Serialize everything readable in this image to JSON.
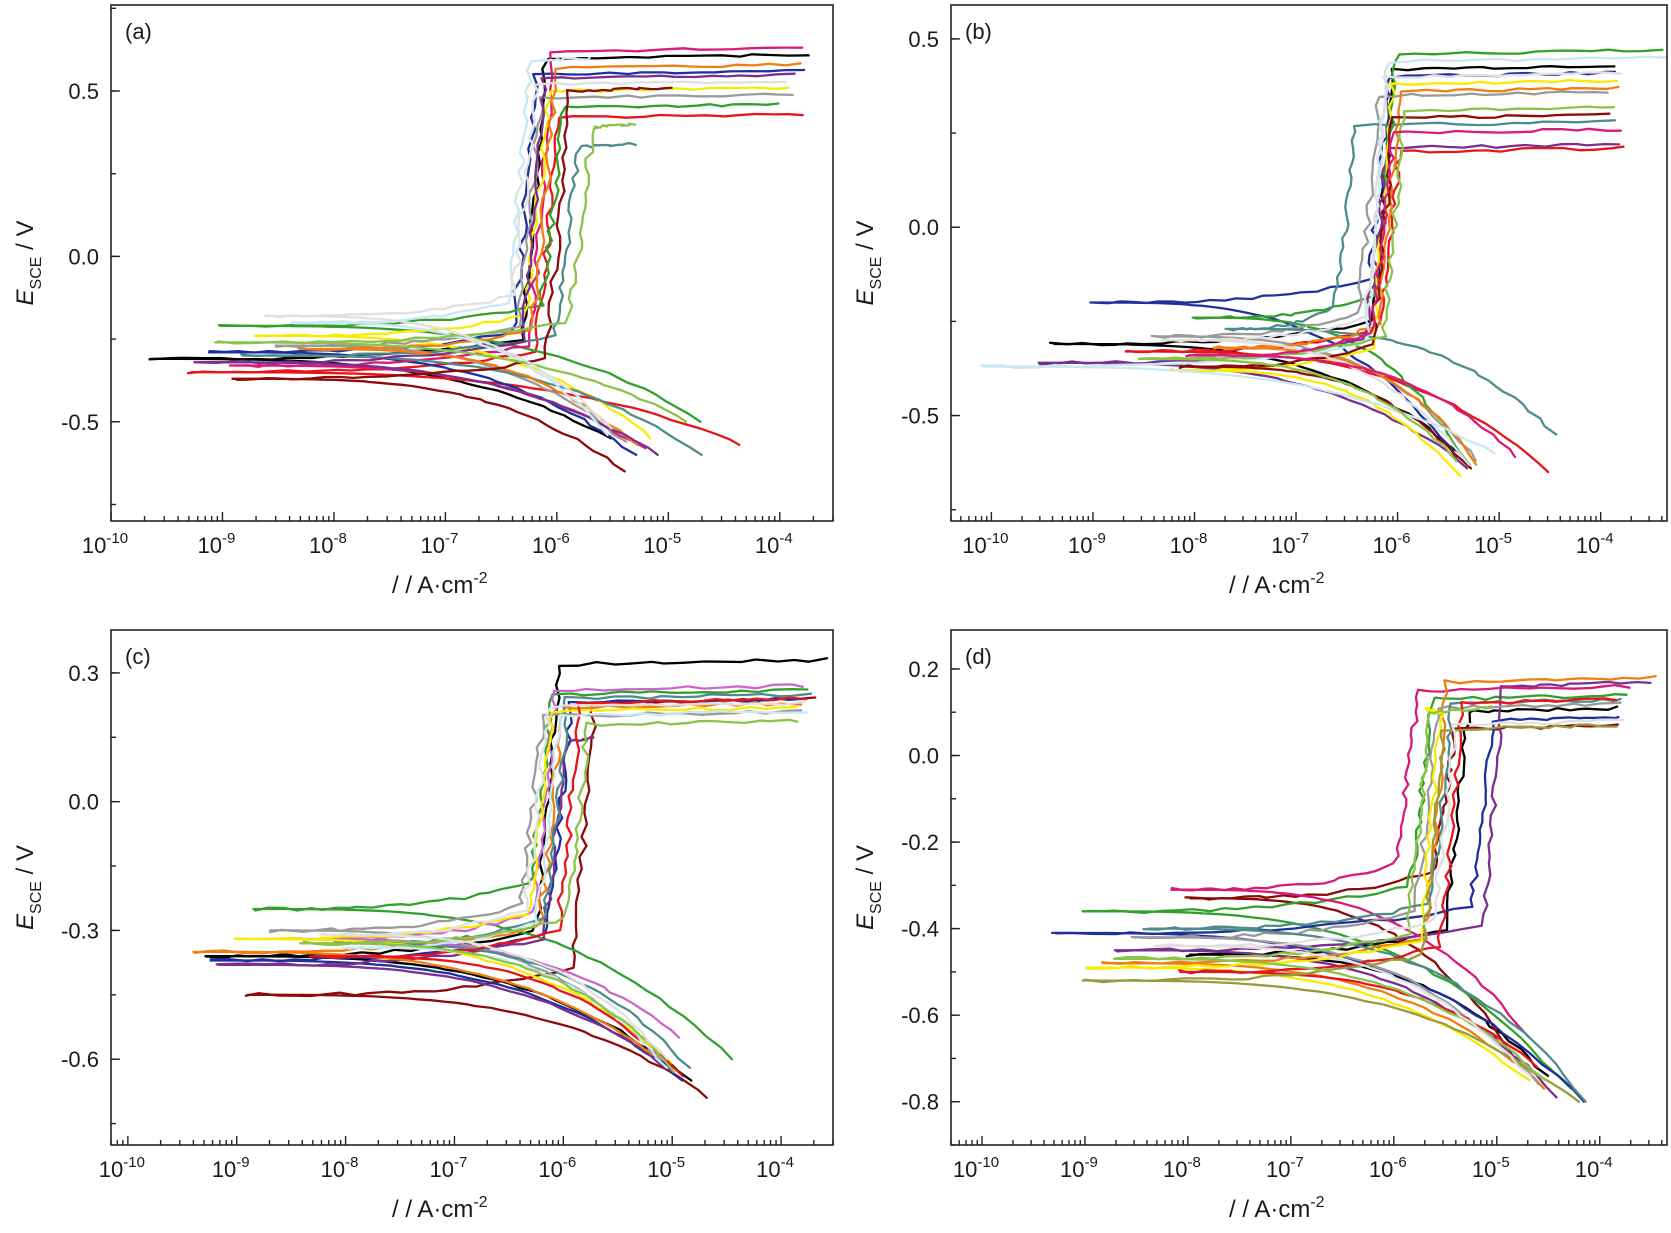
{
  "figure": {
    "panels": [
      {
        "tag": "(a)",
        "xlabel_prefix": "/ / A·cm",
        "ylabel_main": "E",
        "ylabel_sub": "SCE",
        "ylabel_unit": " / V"
      },
      {
        "tag": "(b)",
        "xlabel_prefix": "/ / A·cm",
        "ylabel_main": "E",
        "ylabel_sub": "SCE",
        "ylabel_unit": " / V"
      },
      {
        "tag": "(c)",
        "xlabel_prefix": "/ / A·cm",
        "ylabel_main": "E",
        "ylabel_sub": "SCE",
        "ylabel_unit": " / V"
      },
      {
        "tag": "(d)",
        "xlabel_prefix": "/ / A·cm",
        "ylabel_main": "E",
        "ylabel_sub": "SCE",
        "ylabel_unit": " / V"
      }
    ]
  },
  "chart_data": [
    {
      "type": "line",
      "panel": "(a)",
      "xscale": "log",
      "xlabel": "/ / A·cm⁻²",
      "ylabel": "E_SCE / V",
      "xlim": [
        1e-10,
        0.0003
      ],
      "ylim": [
        -0.8,
        0.76
      ],
      "xticks": [
        "10-10",
        "10-9",
        "10-8",
        "10-7",
        "10-6",
        "10-5",
        "10-4"
      ],
      "yticks": [
        "0.5",
        "0.0",
        "-0.5"
      ],
      "ytick_values": [
        0.5,
        0.0,
        -0.5
      ],
      "colors": [
        "#000000",
        "#e8141b",
        "#1f2f9e",
        "#33a02c",
        "#d81b78",
        "#f5ec00",
        "#9a9a9a",
        "#4e8c8c",
        "#f07f12",
        "#7b2f8e",
        "#c9e8f2",
        "#8b0a0a",
        "#8bc34a",
        "#e0e0e0"
      ],
      "series": [
        {
          "ecorr": -0.31,
          "icorr": 2.2e-10,
          "passive_i": 6e-07,
          "e_break": 0.6,
          "i_end": 0.00018,
          "e_cath_end": -0.55,
          "i_cath_end": 3e-06
        },
        {
          "ecorr": -0.35,
          "icorr": 5e-10,
          "passive_i": 8e-07,
          "e_break": 0.42,
          "i_end": 0.00017,
          "e_cath_end": -0.57,
          "i_cath_end": 4.5e-05
        },
        {
          "ecorr": -0.29,
          "icorr": 8e-10,
          "passive_i": 5e-07,
          "e_break": 0.55,
          "i_end": 0.00016,
          "e_cath_end": -0.6,
          "i_cath_end": 5e-06
        },
        {
          "ecorr": -0.21,
          "icorr": 1e-09,
          "passive_i": 9e-07,
          "e_break": 0.45,
          "i_end": 0.0001,
          "e_cath_end": -0.5,
          "i_cath_end": 2e-05
        },
        {
          "ecorr": -0.33,
          "icorr": 1.2e-09,
          "passive_i": 7e-07,
          "e_break": 0.62,
          "i_end": 0.00015,
          "e_cath_end": -0.58,
          "i_cath_end": 6e-06
        },
        {
          "ecorr": -0.24,
          "icorr": 2e-09,
          "passive_i": 6.5e-07,
          "e_break": 0.5,
          "i_end": 0.00012,
          "e_cath_end": -0.55,
          "i_cath_end": 7e-06
        },
        {
          "ecorr": -0.27,
          "icorr": 3e-09,
          "passive_i": 5.5e-07,
          "e_break": 0.48,
          "i_end": 0.00014,
          "e_cath_end": -0.56,
          "i_cath_end": 4e-06
        },
        {
          "ecorr": -0.3,
          "icorr": 1.5e-09,
          "passive_i": 1.2e-06,
          "e_break": 0.33,
          "i_end": 5e-06,
          "e_cath_end": -0.6,
          "i_cath_end": 2e-05
        },
        {
          "ecorr": -0.28,
          "icorr": 5e-09,
          "passive_i": 7.5e-07,
          "e_break": 0.57,
          "i_end": 0.00016,
          "e_cath_end": -0.57,
          "i_cath_end": 5e-06
        },
        {
          "ecorr": -0.32,
          "icorr": 6e-10,
          "passive_i": 6e-07,
          "e_break": 0.54,
          "i_end": 0.00013,
          "e_cath_end": -0.6,
          "i_cath_end": 8e-06
        },
        {
          "ecorr": -0.2,
          "icorr": 4e-09,
          "passive_i": 4.5e-07,
          "e_break": 0.59,
          "i_end": 2e-06,
          "e_cath_end": -0.54,
          "i_cath_end": 3e-06
        },
        {
          "ecorr": -0.37,
          "icorr": 1.3e-09,
          "passive_i": 1e-06,
          "e_break": 0.5,
          "i_end": 1e-05,
          "e_cath_end": -0.65,
          "i_cath_end": 4e-06
        },
        {
          "ecorr": -0.26,
          "icorr": 9e-10,
          "passive_i": 1.6e-06,
          "e_break": 0.39,
          "i_end": 5e-06,
          "e_cath_end": -0.5,
          "i_cath_end": 1.5e-05
        },
        {
          "ecorr": -0.18,
          "icorr": 2.5e-09,
          "passive_i": 5e-07,
          "e_break": 0.52,
          "i_end": 0.00012,
          "e_cath_end": -0.52,
          "i_cath_end": 3e-06
        }
      ]
    },
    {
      "type": "line",
      "panel": "(b)",
      "xscale": "log",
      "xlabel": "/ / A·cm⁻²",
      "ylabel": "E_SCE / V",
      "xlim": [
        4e-11,
        0.00045
      ],
      "ylim": [
        -0.78,
        0.59
      ],
      "xticks": [
        "10-10",
        "10-9",
        "10-8",
        "10-7",
        "10-6",
        "10-5",
        "10-4"
      ],
      "yticks": [
        "0.5",
        "0.0",
        "-0.5"
      ],
      "ytick_values": [
        0.5,
        0.0,
        -0.5
      ],
      "colors": [
        "#000000",
        "#e8141b",
        "#1f2f9e",
        "#33a02c",
        "#7b2f8e",
        "#f5ec00",
        "#9a9a9a",
        "#4e8c8c",
        "#f07f12",
        "#8b0a0a",
        "#c9e8f2",
        "#8bc34a",
        "#e0e0e0",
        "#d81b78"
      ],
      "series": [
        {
          "ecorr": -0.31,
          "icorr": 4e-10,
          "passive_i": 7e-07,
          "e_break": 0.42,
          "i_end": 0.00013,
          "e_cath_end": -0.62,
          "i_cath_end": 5e-06
        },
        {
          "ecorr": -0.33,
          "icorr": 2e-09,
          "passive_i": 8e-07,
          "e_break": 0.2,
          "i_end": 0.00017,
          "e_cath_end": -0.65,
          "i_cath_end": 3e-05
        },
        {
          "ecorr": -0.2,
          "icorr": 1e-09,
          "passive_i": 6.5e-07,
          "e_break": 0.4,
          "i_end": 0.00015,
          "e_cath_end": -0.62,
          "i_cath_end": 4e-06
        },
        {
          "ecorr": -0.24,
          "icorr": 1e-08,
          "passive_i": 7.5e-07,
          "e_break": 0.46,
          "i_end": 0.0004,
          "e_cath_end": -0.63,
          "i_cath_end": 5e-06
        },
        {
          "ecorr": -0.36,
          "icorr": 3e-10,
          "passive_i": 6e-07,
          "e_break": 0.21,
          "i_end": 0.00016,
          "e_cath_end": -0.64,
          "i_cath_end": 5e-06
        },
        {
          "ecorr": -0.38,
          "icorr": 6e-09,
          "passive_i": 7e-07,
          "e_break": 0.38,
          "i_end": 0.00014,
          "e_cath_end": -0.66,
          "i_cath_end": 4e-06
        },
        {
          "ecorr": -0.29,
          "icorr": 4e-09,
          "passive_i": 5e-07,
          "e_break": 0.35,
          "i_end": 0.00012,
          "e_cath_end": -0.62,
          "i_cath_end": 6e-06
        },
        {
          "ecorr": -0.27,
          "icorr": 2e-08,
          "passive_i": 3e-07,
          "e_break": 0.27,
          "i_end": 0.00013,
          "e_cath_end": -0.55,
          "i_cath_end": 3.5e-05
        },
        {
          "ecorr": -0.32,
          "icorr": 1.5e-08,
          "passive_i": 8e-07,
          "e_break": 0.36,
          "i_end": 0.00015,
          "e_cath_end": -0.63,
          "i_cath_end": 6e-06
        },
        {
          "ecorr": -0.37,
          "icorr": 7e-09,
          "passive_i": 7e-07,
          "e_break": 0.29,
          "i_end": 0.00013,
          "e_cath_end": -0.64,
          "i_cath_end": 5e-06
        },
        {
          "ecorr": -0.37,
          "icorr": 8e-11,
          "passive_i": 6e-07,
          "e_break": 0.44,
          "i_end": 0.00045,
          "e_cath_end": -0.6,
          "i_cath_end": 9e-06
        },
        {
          "ecorr": -0.35,
          "icorr": 3e-09,
          "passive_i": 9e-07,
          "e_break": 0.31,
          "i_end": 0.00014,
          "e_cath_end": -0.62,
          "i_cath_end": 4e-06
        },
        {
          "ecorr": -0.3,
          "icorr": 5e-09,
          "passive_i": 6e-07,
          "e_break": 0.4,
          "i_end": 0.00015,
          "e_cath_end": -0.63,
          "i_cath_end": 5e-06
        },
        {
          "ecorr": -0.34,
          "icorr": 9e-09,
          "passive_i": 7e-07,
          "e_break": 0.25,
          "i_end": 0.00016,
          "e_cath_end": -0.61,
          "i_cath_end": 1.5e-05
        }
      ]
    },
    {
      "type": "line",
      "panel": "(c)",
      "xscale": "log",
      "xlabel": "/ / A·cm⁻²",
      "ylabel": "E_SCE / V",
      "xlim": [
        7e-11,
        0.0003
      ],
      "ylim": [
        -0.8,
        0.4
      ],
      "xticks": [
        "10-10",
        "10-9",
        "10-8",
        "10-7",
        "10-6",
        "10-5",
        "10-4"
      ],
      "yticks": [
        "0.3",
        "0.0",
        "-0.3",
        "-0.6"
      ],
      "ytick_values": [
        0.3,
        0.0,
        -0.3,
        -0.6
      ],
      "colors": [
        "#000000",
        "#8b0a0a",
        "#33a02c",
        "#1f2f9e",
        "#7b2f8e",
        "#cc66cc",
        "#f07f12",
        "#9a9a9a",
        "#4e8c8c",
        "#f5ec00",
        "#e8141b",
        "#c9e8f2",
        "#8bc34a",
        "#e0e0e0"
      ],
      "series": [
        {
          "ecorr": -0.36,
          "icorr": 5e-10,
          "passive_i": 7e-07,
          "e_break": 0.32,
          "i_end": 0.00028,
          "e_cath_end": -0.65,
          "i_cath_end": 1.5e-05
        },
        {
          "ecorr": -0.45,
          "icorr": 1.2e-09,
          "passive_i": 1.5e-06,
          "e_break": 0.23,
          "i_end": 0.0002,
          "e_cath_end": -0.69,
          "i_cath_end": 2.2e-05
        },
        {
          "ecorr": -0.25,
          "icorr": 1.5e-09,
          "passive_i": 6e-07,
          "e_break": 0.25,
          "i_end": 0.00018,
          "e_cath_end": -0.6,
          "i_cath_end": 3.5e-05
        },
        {
          "ecorr": -0.37,
          "icorr": 6e-10,
          "passive_i": 9e-07,
          "e_break": 0.23,
          "i_end": 0.00016,
          "e_cath_end": -0.65,
          "i_cath_end": 1.3e-05
        },
        {
          "ecorr": -0.38,
          "icorr": 7e-10,
          "passive_i": 8e-07,
          "e_break": 0.14,
          "i_end": 1.9e-06,
          "e_cath_end": -0.63,
          "i_cath_end": 1e-05
        },
        {
          "ecorr": -0.32,
          "icorr": 3e-09,
          "passive_i": 6.5e-07,
          "e_break": 0.26,
          "i_end": 0.00017,
          "e_cath_end": -0.55,
          "i_cath_end": 1.2e-05
        },
        {
          "ecorr": -0.35,
          "icorr": 4e-10,
          "passive_i": 7.5e-07,
          "e_break": 0.22,
          "i_end": 0.00015,
          "e_cath_end": -0.62,
          "i_cath_end": 1e-05
        },
        {
          "ecorr": -0.3,
          "icorr": 2e-09,
          "passive_i": 5e-07,
          "e_break": 0.2,
          "i_end": 0.00016,
          "e_cath_end": -0.6,
          "i_cath_end": 8e-06
        },
        {
          "ecorr": -0.33,
          "icorr": 8e-09,
          "passive_i": 8.5e-07,
          "e_break": 0.24,
          "i_end": 0.00018,
          "e_cath_end": -0.62,
          "i_cath_end": 1.4e-05
        },
        {
          "ecorr": -0.32,
          "icorr": 1e-09,
          "passive_i": 6e-07,
          "e_break": 0.21,
          "i_end": 0.00014,
          "e_cath_end": -0.61,
          "i_cath_end": 1e-05
        },
        {
          "ecorr": -0.36,
          "icorr": 5e-09,
          "passive_i": 1.1e-06,
          "e_break": 0.23,
          "i_end": 0.00016,
          "e_cath_end": -0.64,
          "i_cath_end": 1.2e-05
        },
        {
          "ecorr": -0.34,
          "icorr": 1e-08,
          "passive_i": 7e-07,
          "e_break": 0.2,
          "i_end": 0.00017,
          "e_cath_end": -0.62,
          "i_cath_end": 9e-06
        },
        {
          "ecorr": -0.33,
          "icorr": 4e-09,
          "passive_i": 1.3e-06,
          "e_break": 0.18,
          "i_end": 0.00015,
          "e_cath_end": -0.63,
          "i_cath_end": 1.1e-05
        },
        {
          "ecorr": -0.31,
          "icorr": 6e-09,
          "passive_i": 5.5e-07,
          "e_break": 0.22,
          "i_end": 0.00016,
          "e_cath_end": -0.6,
          "i_cath_end": 9e-06
        }
      ]
    },
    {
      "type": "line",
      "panel": "(d)",
      "xscale": "log",
      "xlabel": "/ / A·cm⁻²",
      "ylabel": "E_SCE / V",
      "xlim": [
        5e-11,
        0.00045
      ],
      "ylim": [
        -0.9,
        0.29
      ],
      "xticks": [
        "10-10",
        "10-9",
        "10-8",
        "10-7",
        "10-6",
        "10-5",
        "10-4"
      ],
      "yticks": [
        "0.2",
        "0.0",
        "-0.2",
        "-0.4",
        "-0.6",
        "-0.8"
      ],
      "ytick_values": [
        0.2,
        0.0,
        -0.2,
        -0.4,
        -0.6,
        -0.8
      ],
      "colors": [
        "#000000",
        "#8b0a0a",
        "#33a02c",
        "#1f2f9e",
        "#7b2f8e",
        "#d81b78",
        "#f07f12",
        "#9a9a9a",
        "#4e8c8c",
        "#f5ec00",
        "#e8141b",
        "#9a9a3a",
        "#8bc34a",
        "#e0e0e0"
      ],
      "series": [
        {
          "ecorr": -0.46,
          "icorr": 1e-08,
          "passive_i": 4e-06,
          "e_break": 0.1,
          "i_end": 0.00015,
          "e_cath_end": -0.74,
          "i_cath_end": 3e-05
        },
        {
          "ecorr": -0.33,
          "icorr": 1e-08,
          "passive_i": 3e-06,
          "e_break": 0.06,
          "i_end": 0.00014,
          "e_cath_end": -0.7,
          "i_cath_end": 1.5e-05
        },
        {
          "ecorr": -0.36,
          "icorr": 1e-09,
          "passive_i": 1.8e-06,
          "e_break": 0.13,
          "i_end": 0.00018,
          "e_cath_end": -0.77,
          "i_cath_end": 5e-05
        },
        {
          "ecorr": -0.41,
          "icorr": 5e-10,
          "passive_i": 7e-06,
          "e_break": 0.08,
          "i_end": 0.00016,
          "e_cath_end": -0.8,
          "i_cath_end": 7e-05
        },
        {
          "ecorr": -0.45,
          "icorr": 2e-09,
          "passive_i": 9e-06,
          "e_break": 0.16,
          "i_end": 0.0003,
          "e_cath_end": -0.79,
          "i_cath_end": 4e-05
        },
        {
          "ecorr": -0.31,
          "icorr": 7e-09,
          "passive_i": 1.3e-06,
          "e_break": 0.15,
          "i_end": 0.0002,
          "e_cath_end": -0.65,
          "i_cath_end": 2e-05
        },
        {
          "ecorr": -0.48,
          "icorr": 1.5e-09,
          "passive_i": 2.5e-06,
          "e_break": 0.17,
          "i_end": 0.00033,
          "e_cath_end": -0.77,
          "i_cath_end": 3e-05
        },
        {
          "ecorr": -0.42,
          "icorr": 3e-09,
          "passive_i": 2e-06,
          "e_break": 0.11,
          "i_end": 0.00016,
          "e_cath_end": -0.76,
          "i_cath_end": 2.5e-05
        },
        {
          "ecorr": -0.4,
          "icorr": 4e-09,
          "passive_i": 2.8e-06,
          "e_break": 0.12,
          "i_end": 0.00017,
          "e_cath_end": -0.8,
          "i_cath_end": 7.5e-05
        },
        {
          "ecorr": -0.49,
          "icorr": 1e-09,
          "passive_i": 2.2e-06,
          "e_break": 0.1,
          "i_end": 2e-06,
          "e_cath_end": -0.75,
          "i_cath_end": 2e-05
        },
        {
          "ecorr": -0.5,
          "icorr": 8e-09,
          "passive_i": 3.5e-06,
          "e_break": 0.12,
          "i_end": 0.00015,
          "e_cath_end": -0.72,
          "i_cath_end": 2.5e-05
        },
        {
          "ecorr": -0.52,
          "icorr": 1e-09,
          "passive_i": 2.4e-06,
          "e_break": 0.06,
          "i_end": 0.00014,
          "e_cath_end": -0.8,
          "i_cath_end": 6e-05
        },
        {
          "ecorr": -0.47,
          "icorr": 2e-09,
          "passive_i": 1.7e-06,
          "e_break": 0.1,
          "i_end": 9e-06,
          "e_cath_end": -0.75,
          "i_cath_end": 3e-05
        },
        {
          "ecorr": -0.44,
          "icorr": 5e-09,
          "passive_i": 3e-06,
          "e_break": 0.07,
          "i_end": 0.00016,
          "e_cath_end": -0.74,
          "i_cath_end": 2e-05
        }
      ]
    }
  ]
}
